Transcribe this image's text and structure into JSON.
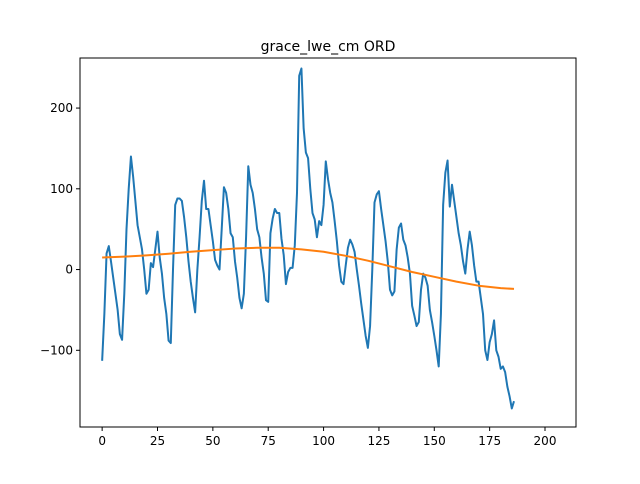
{
  "chart_data": {
    "type": "line",
    "title": "grace_lwe_cm ORD",
    "xlabel": "",
    "ylabel": "",
    "xlim": [
      -10,
      214
    ],
    "ylim": [
      -195,
      262
    ],
    "grid": false,
    "x_ticks": [
      0,
      25,
      50,
      75,
      100,
      125,
      150,
      175,
      200
    ],
    "y_ticks": [
      -100,
      0,
      100,
      200
    ],
    "x_tick_labels": [
      "0",
      "25",
      "50",
      "75",
      "100",
      "125",
      "150",
      "175",
      "200"
    ],
    "y_tick_labels": [
      "−100",
      "0",
      "100",
      "200"
    ],
    "series": [
      {
        "color": "#1f77b4",
        "points": [
          [
            0,
            -113
          ],
          [
            1,
            -55
          ],
          [
            2,
            20
          ],
          [
            3,
            29
          ],
          [
            4,
            10
          ],
          [
            5,
            -10
          ],
          [
            6,
            -30
          ],
          [
            7,
            -50
          ],
          [
            8,
            -80
          ],
          [
            9,
            -87
          ],
          [
            10,
            -30
          ],
          [
            11,
            50
          ],
          [
            12,
            100
          ],
          [
            13,
            140
          ],
          [
            14,
            115
          ],
          [
            15,
            85
          ],
          [
            16,
            55
          ],
          [
            17,
            40
          ],
          [
            18,
            25
          ],
          [
            19,
            0
          ],
          [
            20,
            -30
          ],
          [
            21,
            -25
          ],
          [
            22,
            8
          ],
          [
            23,
            3
          ],
          [
            24,
            25
          ],
          [
            25,
            47
          ],
          [
            26,
            15
          ],
          [
            27,
            -5
          ],
          [
            28,
            -35
          ],
          [
            29,
            -55
          ],
          [
            30,
            -88
          ],
          [
            31,
            -91
          ],
          [
            32,
            0
          ],
          [
            33,
            80
          ],
          [
            34,
            88
          ],
          [
            35,
            88
          ],
          [
            36,
            85
          ],
          [
            37,
            65
          ],
          [
            38,
            40
          ],
          [
            39,
            10
          ],
          [
            40,
            -15
          ],
          [
            41,
            -35
          ],
          [
            42,
            -53
          ],
          [
            43,
            0
          ],
          [
            44,
            40
          ],
          [
            45,
            85
          ],
          [
            46,
            110
          ],
          [
            47,
            75
          ],
          [
            48,
            75
          ],
          [
            49,
            55
          ],
          [
            50,
            35
          ],
          [
            51,
            12
          ],
          [
            52,
            5
          ],
          [
            53,
            0
          ],
          [
            54,
            50
          ],
          [
            55,
            102
          ],
          [
            56,
            95
          ],
          [
            57,
            75
          ],
          [
            58,
            45
          ],
          [
            59,
            40
          ],
          [
            60,
            10
          ],
          [
            61,
            -10
          ],
          [
            62,
            -35
          ],
          [
            63,
            -48
          ],
          [
            64,
            -30
          ],
          [
            65,
            40
          ],
          [
            66,
            128
          ],
          [
            67,
            105
          ],
          [
            68,
            95
          ],
          [
            69,
            75
          ],
          [
            70,
            50
          ],
          [
            71,
            40
          ],
          [
            72,
            15
          ],
          [
            73,
            -5
          ],
          [
            74,
            -38
          ],
          [
            75,
            -40
          ],
          [
            76,
            45
          ],
          [
            77,
            63
          ],
          [
            78,
            75
          ],
          [
            79,
            70
          ],
          [
            80,
            70
          ],
          [
            81,
            38
          ],
          [
            82,
            18
          ],
          [
            83,
            -18
          ],
          [
            84,
            -3
          ],
          [
            85,
            2
          ],
          [
            86,
            2
          ],
          [
            87,
            30
          ],
          [
            88,
            95
          ],
          [
            89,
            240
          ],
          [
            90,
            249
          ],
          [
            91,
            175
          ],
          [
            92,
            145
          ],
          [
            93,
            138
          ],
          [
            94,
            100
          ],
          [
            95,
            70
          ],
          [
            96,
            62
          ],
          [
            97,
            40
          ],
          [
            98,
            60
          ],
          [
            99,
            55
          ],
          [
            100,
            80
          ],
          [
            101,
            134
          ],
          [
            102,
            112
          ],
          [
            103,
            95
          ],
          [
            104,
            83
          ],
          [
            105,
            60
          ],
          [
            106,
            35
          ],
          [
            107,
            5
          ],
          [
            108,
            -15
          ],
          [
            109,
            -18
          ],
          [
            110,
            5
          ],
          [
            111,
            27
          ],
          [
            112,
            37
          ],
          [
            113,
            31
          ],
          [
            114,
            22
          ],
          [
            115,
            0
          ],
          [
            116,
            -20
          ],
          [
            117,
            -42
          ],
          [
            118,
            -62
          ],
          [
            119,
            -82
          ],
          [
            120,
            -97
          ],
          [
            121,
            -70
          ],
          [
            122,
            0
          ],
          [
            123,
            83
          ],
          [
            124,
            93
          ],
          [
            125,
            97
          ],
          [
            126,
            75
          ],
          [
            127,
            55
          ],
          [
            128,
            35
          ],
          [
            129,
            10
          ],
          [
            130,
            -25
          ],
          [
            131,
            -32
          ],
          [
            132,
            -27
          ],
          [
            133,
            25
          ],
          [
            134,
            52
          ],
          [
            135,
            57
          ],
          [
            136,
            37
          ],
          [
            137,
            30
          ],
          [
            138,
            15
          ],
          [
            139,
            -5
          ],
          [
            140,
            -45
          ],
          [
            141,
            -57
          ],
          [
            142,
            -70
          ],
          [
            143,
            -65
          ],
          [
            144,
            -25
          ],
          [
            145,
            -5
          ],
          [
            146,
            -10
          ],
          [
            147,
            -20
          ],
          [
            148,
            -50
          ],
          [
            149,
            -65
          ],
          [
            150,
            -82
          ],
          [
            151,
            -100
          ],
          [
            152,
            -120
          ],
          [
            153,
            -55
          ],
          [
            154,
            80
          ],
          [
            155,
            120
          ],
          [
            156,
            135
          ],
          [
            157,
            78
          ],
          [
            158,
            105
          ],
          [
            159,
            85
          ],
          [
            160,
            65
          ],
          [
            161,
            45
          ],
          [
            162,
            30
          ],
          [
            163,
            10
          ],
          [
            164,
            -5
          ],
          [
            165,
            25
          ],
          [
            166,
            47
          ],
          [
            167,
            30
          ],
          [
            168,
            5
          ],
          [
            169,
            -15
          ],
          [
            170,
            -15
          ],
          [
            171,
            -35
          ],
          [
            172,
            -55
          ],
          [
            173,
            -100
          ],
          [
            174,
            -112
          ],
          [
            175,
            -90
          ],
          [
            176,
            -80
          ],
          [
            177,
            -63
          ],
          [
            178,
            -100
          ],
          [
            179,
            -108
          ],
          [
            180,
            -123
          ],
          [
            181,
            -120
          ],
          [
            182,
            -127
          ],
          [
            183,
            -145
          ],
          [
            184,
            -157
          ],
          [
            185,
            -172
          ],
          [
            186,
            -163
          ]
        ]
      },
      {
        "color": "#ff7f0e",
        "points": [
          [
            0,
            15
          ],
          [
            10,
            16
          ],
          [
            20,
            17.5
          ],
          [
            30,
            19.5
          ],
          [
            40,
            22
          ],
          [
            50,
            24
          ],
          [
            60,
            26
          ],
          [
            70,
            27
          ],
          [
            80,
            27
          ],
          [
            90,
            25
          ],
          [
            100,
            22
          ],
          [
            110,
            17
          ],
          [
            120,
            11
          ],
          [
            130,
            4
          ],
          [
            140,
            -3
          ],
          [
            150,
            -9
          ],
          [
            160,
            -15
          ],
          [
            170,
            -20
          ],
          [
            180,
            -23
          ],
          [
            186,
            -24
          ]
        ]
      }
    ]
  }
}
